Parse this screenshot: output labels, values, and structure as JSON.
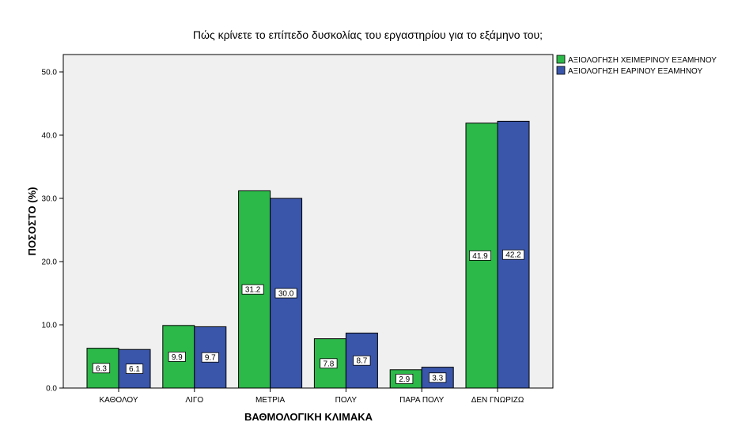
{
  "chart_data": {
    "type": "bar",
    "title": "Πώς κρίνετε το επίπεδο δυσκολίας του εργαστηρίου για το εξάμηνο του;",
    "xlabel": "ΒΑΘΜΟΛΟΓΙΚΗ ΚΛΙΜΑΚΑ",
    "ylabel": "ΠΟΣΟΣΤΟ (%)",
    "ylim": [
      0,
      55
    ],
    "yticks": [
      0,
      10,
      20,
      30,
      40,
      50
    ],
    "ytick_labels": [
      "0.0",
      "10.0",
      "20.0",
      "30.0",
      "40.0",
      "50.0"
    ],
    "categories": [
      "ΚΑΘΟΛΟΥ",
      "ΛΙΓΟ",
      "ΜΕΤΡΙΑ",
      "ΠΟΛΥ",
      "ΠΑΡΑ ΠΟΛΥ",
      "ΔΕΝ ΓΝΩΡΙΖΩ"
    ],
    "series": [
      {
        "name": "ΑΞΙΟΛΟΓΗΣΗ ΧΕΙΜΕΡΙΝΟΥ ΕΞΑΜΗΝΟΥ",
        "color": "#2db84a",
        "values": [
          6.3,
          9.9,
          31.2,
          7.8,
          2.9,
          41.9
        ],
        "labels": [
          "6.3",
          "9.9",
          "31.2",
          "7.8",
          "2.9",
          "41.9"
        ]
      },
      {
        "name": "ΑΞΙΟΛΟΓΗΣΗ ΕΑΡΙΝΟΥ ΕΞΑΜΗΝΟΥ",
        "color": "#3a56ab",
        "values": [
          6.1,
          9.7,
          30.0,
          8.7,
          3.3,
          42.2
        ],
        "labels": [
          "6.1",
          "9.7",
          "30.0",
          "8.7",
          "3.3",
          "42.2"
        ]
      }
    ],
    "grid": false,
    "legend": "top-right",
    "plot_background": "#f0f0f0"
  }
}
